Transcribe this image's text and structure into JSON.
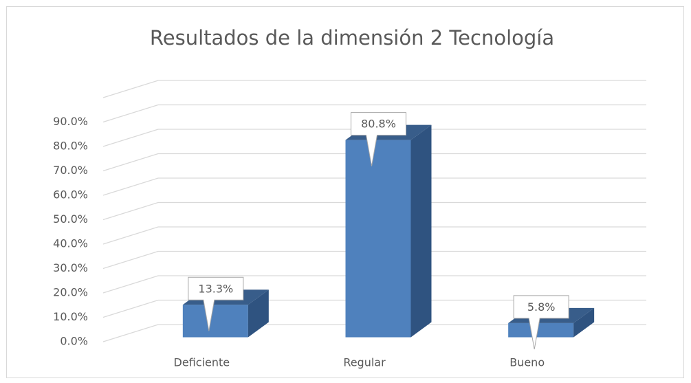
{
  "chart_data": {
    "type": "bar3d",
    "title": "Resultados de la dimensión 2 Tecnología",
    "categories": [
      "Deficiente",
      "Regular",
      "Bueno"
    ],
    "values": [
      13.3,
      80.8,
      5.8
    ],
    "value_labels": [
      "13.3%",
      "80.8%",
      "5.8%"
    ],
    "color": "#4f81bd",
    "ylim": [
      0,
      100
    ],
    "yticks": [
      {
        "value": 0,
        "label": "0.0%"
      },
      {
        "value": 10,
        "label": "10.0%"
      },
      {
        "value": 20,
        "label": "20.0%"
      },
      {
        "value": 30,
        "label": "30.0%"
      },
      {
        "value": 40,
        "label": "40.0%"
      },
      {
        "value": 50,
        "label": "50.0%"
      },
      {
        "value": 60,
        "label": "60.0%"
      },
      {
        "value": 70,
        "label": "70.0%"
      },
      {
        "value": 80,
        "label": "80.0%"
      },
      {
        "value": 90,
        "label": "90.0%"
      }
    ],
    "grid": true
  }
}
